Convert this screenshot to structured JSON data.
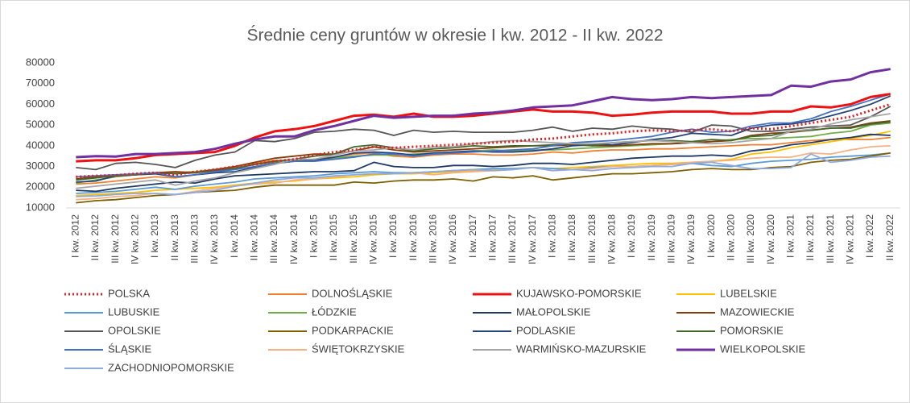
{
  "chart_data": {
    "type": "line",
    "title": "Średnie ceny gruntów w okresie I kw. 2012 - II kw. 2022",
    "categories": [
      "I kw. 2012",
      "II kw. 2012",
      "III kw. 2012",
      "IV kw. 2012",
      "I kw. 2013",
      "II kw. 2013",
      "III kw. 2013",
      "IV kw. 2013",
      "I kw. 2014",
      "II kw. 2014",
      "III kw. 2014",
      "IV kw. 2014",
      "I kw. 2015",
      "II kw. 2015",
      "III kw. 2015",
      "IV kw. 2015",
      "I kw. 2016",
      "II kw. 2016",
      "III kw. 2016",
      "IV kw. 2016",
      "I kw. 2017",
      "II kw. 2017",
      "III kw. 2017",
      "IV kw. 2017",
      "I kw. 2018",
      "II kw. 2018",
      "III kw. 2018",
      "IV kw. 2018",
      "I kw. 2019",
      "II kw. 2019",
      "III kw. 2019",
      "IV kw. 2019",
      "I kw. 2020",
      "II kw. 2020",
      "III kw. 2020",
      "IV kw. 2020",
      "I kw. 2021",
      "II kw. 2021",
      "III kw. 2021",
      "IV kw. 2021",
      "I kw. 2022",
      "II kw. 2022"
    ],
    "ylim": [
      10000,
      80000
    ],
    "yticks": [
      10000,
      20000,
      30000,
      40000,
      50000,
      60000,
      70000,
      80000
    ],
    "grid": false,
    "legend": "bottom",
    "series": [
      {
        "name": "POLSKA",
        "color": "#e02020",
        "style": "dotted",
        "line_width": 3,
        "values": [
          25000,
          25500,
          25800,
          26500,
          27000,
          26000,
          27500,
          28500,
          30000,
          31000,
          32500,
          33500,
          35500,
          37000,
          38000,
          39500,
          39000,
          39500,
          40000,
          40500,
          41000,
          41500,
          42000,
          43000,
          43500,
          44500,
          45500,
          46000,
          47000,
          47500,
          47000,
          47500,
          48000,
          47000,
          48500,
          48000,
          49500,
          51000,
          52500,
          54000,
          57000,
          60000
        ]
      },
      {
        "name": "DOLNOŚLĄSKIE",
        "color": "#f08030",
        "values": [
          21500,
          22000,
          23000,
          24000,
          25000,
          24500,
          26000,
          27000,
          29000,
          31500,
          33000,
          32500,
          33500,
          34500,
          36000,
          36500,
          35000,
          34500,
          35500,
          36000,
          36000,
          35500,
          35500,
          36000,
          37000,
          36500,
          37500,
          38000,
          38000,
          38500,
          38500,
          39000,
          39500,
          40000,
          40500,
          40500,
          41500,
          42500,
          43000,
          43000,
          43000,
          44000
        ]
      },
      {
        "name": "KUJAWSKO-POMORSKIE",
        "color": "#ee1111",
        "line_width": 3,
        "values": [
          32500,
          33000,
          33000,
          34000,
          35500,
          36000,
          36500,
          37000,
          40000,
          44000,
          47000,
          48000,
          49500,
          52000,
          54500,
          55000,
          54000,
          55500,
          54000,
          54000,
          54500,
          55500,
          56500,
          57500,
          56500,
          56500,
          56000,
          54500,
          55000,
          56000,
          56500,
          56500,
          56500,
          55500,
          55500,
          56500,
          56500,
          59000,
          58500,
          60000,
          63500,
          65000
        ]
      },
      {
        "name": "LUBELSKIE",
        "color": "#ffc000",
        "values": [
          16000,
          16500,
          17000,
          17500,
          18500,
          19000,
          19500,
          20000,
          21000,
          22000,
          22500,
          23000,
          24000,
          24500,
          25000,
          26000,
          26500,
          26500,
          27000,
          27500,
          28000,
          28500,
          29000,
          29500,
          29000,
          29500,
          30000,
          30500,
          31000,
          31500,
          31500,
          32000,
          32500,
          33500,
          36000,
          37000,
          39000,
          40500,
          42000,
          43500,
          45000,
          47000
        ]
      },
      {
        "name": "LUBUSKIE",
        "color": "#5b9bd5",
        "values": [
          17000,
          17500,
          18000,
          19000,
          20000,
          19000,
          20500,
          21500,
          22500,
          24000,
          24500,
          25000,
          25500,
          26500,
          27000,
          27500,
          27000,
          27000,
          27500,
          28000,
          28500,
          29000,
          29000,
          29500,
          29000,
          28500,
          29500,
          30000,
          30000,
          30500,
          31000,
          31500,
          30500,
          30000,
          31500,
          32500,
          33000,
          33500,
          34500,
          35000,
          35500,
          36500
        ]
      },
      {
        "name": "ŁÓDZKIE",
        "color": "#70ad47",
        "values": [
          22000,
          23500,
          25000,
          26000,
          26500,
          27000,
          27500,
          28500,
          29500,
          31000,
          32000,
          33000,
          33500,
          34000,
          35000,
          35500,
          35500,
          36000,
          36500,
          37000,
          37500,
          38000,
          37500,
          38000,
          38000,
          38500,
          39000,
          39500,
          40000,
          40500,
          41000,
          41500,
          42000,
          43000,
          43500,
          43500,
          44000,
          44500,
          46000,
          47000,
          50000,
          51000
        ]
      },
      {
        "name": "MAŁOPOLSKIE",
        "color": "#1f3864",
        "values": [
          18500,
          18000,
          19500,
          20500,
          21500,
          22500,
          22000,
          24000,
          25500,
          26000,
          26500,
          27000,
          27500,
          27500,
          28000,
          32000,
          30000,
          29500,
          29500,
          30500,
          30500,
          30000,
          30500,
          31500,
          31500,
          31000,
          32000,
          33000,
          34000,
          34500,
          35000,
          35000,
          35500,
          35000,
          37500,
          38500,
          40500,
          41500,
          43000,
          44000,
          45500,
          45000
        ]
      },
      {
        "name": "MAZOWIECKIE",
        "color": "#843c0c",
        "values": [
          24000,
          25000,
          25500,
          26000,
          27000,
          27500,
          27000,
          28500,
          30000,
          32000,
          34000,
          35000,
          36000,
          36000,
          37500,
          39500,
          38000,
          37000,
          37500,
          38000,
          38500,
          39000,
          39500,
          40000,
          40000,
          40500,
          40000,
          40000,
          40500,
          41000,
          41000,
          41500,
          42000,
          42500,
          45000,
          46000,
          46500,
          47500,
          48500,
          49000,
          51000,
          52000
        ]
      },
      {
        "name": "OPOLSKIE",
        "color": "#555555",
        "values": [
          29500,
          28500,
          31500,
          32000,
          31000,
          29500,
          33000,
          35500,
          37000,
          42500,
          42000,
          43500,
          46500,
          47000,
          48000,
          47500,
          45000,
          47500,
          46500,
          47000,
          46500,
          46500,
          46500,
          47500,
          49000,
          47000,
          48500,
          48000,
          49500,
          48500,
          48000,
          46500,
          50000,
          49500,
          47000,
          47000,
          48000,
          49000,
          49500,
          50000,
          54000,
          59000
        ]
      },
      {
        "name": "PODKARPACKIE",
        "color": "#7f6000",
        "values": [
          12500,
          13500,
          14000,
          15000,
          16000,
          16500,
          17500,
          18000,
          18500,
          20000,
          21000,
          21000,
          21000,
          21000,
          22500,
          22000,
          23000,
          23500,
          23500,
          24000,
          23000,
          25000,
          24500,
          25500,
          23500,
          24500,
          25500,
          26500,
          26500,
          27000,
          27500,
          28500,
          29000,
          28500,
          28500,
          29500,
          30000,
          32000,
          33000,
          33500,
          35000,
          36500
        ]
      },
      {
        "name": "PODLASKIE",
        "color": "#264478",
        "values": [
          22500,
          23000,
          25500,
          26000,
          26500,
          25000,
          26000,
          27000,
          27500,
          29500,
          31500,
          32500,
          33000,
          34500,
          36500,
          37000,
          36500,
          35500,
          36500,
          37000,
          37500,
          37000,
          37000,
          37500,
          38500,
          40000,
          40500,
          40500,
          41500,
          43000,
          44000,
          46000,
          45500,
          45000,
          48500,
          50000,
          50500,
          52000,
          54500,
          57000,
          60000,
          64000
        ]
      },
      {
        "name": "POMORSKIE",
        "color": "#43682b",
        "values": [
          23500,
          24500,
          25500,
          26000,
          27000,
          26500,
          27000,
          28000,
          29000,
          31000,
          32500,
          33500,
          35000,
          36000,
          39500,
          40500,
          39000,
          37500,
          38500,
          39000,
          40000,
          39500,
          40000,
          40000,
          40500,
          41000,
          40000,
          41500,
          42000,
          42500,
          42500,
          42000,
          43000,
          42500,
          44500,
          45000,
          47000,
          47500,
          48500,
          48500,
          50500,
          51500
        ]
      },
      {
        "name": "ŚLĄSKIE",
        "color": "#4472c4",
        "values": [
          25000,
          25500,
          26000,
          26500,
          27000,
          25000,
          26000,
          27500,
          28500,
          30000,
          31500,
          32500,
          32500,
          33500,
          34500,
          36000,
          36000,
          35000,
          36000,
          36500,
          37000,
          37500,
          38000,
          38500,
          40000,
          41500,
          42000,
          42500,
          43500,
          44500,
          46500,
          48000,
          46500,
          47000,
          49500,
          51000,
          51000,
          53000,
          56500,
          59000,
          62000,
          65000
        ]
      },
      {
        "name": "ŚWIĘTOKRZYSKIE",
        "color": "#f4b183",
        "values": [
          14000,
          14500,
          15500,
          16000,
          17000,
          16500,
          18000,
          19500,
          20500,
          21500,
          22000,
          23500,
          24000,
          25000,
          26000,
          26500,
          26500,
          27000,
          26000,
          27000,
          27500,
          28000,
          28500,
          29500,
          28000,
          28500,
          29000,
          30000,
          30000,
          30500,
          31000,
          32000,
          32500,
          33000,
          34000,
          34500,
          34500,
          36500,
          36000,
          38000,
          39500,
          40000
        ]
      },
      {
        "name": "WARMIŃSKO-MAZURSKIE",
        "color": "#a5a5a5",
        "values": [
          19500,
          20500,
          21500,
          22500,
          23500,
          21000,
          23000,
          24500,
          27000,
          29000,
          31000,
          33500,
          33500,
          35500,
          37500,
          38000,
          39000,
          38000,
          39500,
          39500,
          41000,
          42000,
          42500,
          42000,
          41500,
          41000,
          41000,
          41500,
          42000,
          42500,
          42000,
          41500,
          41000,
          41500,
          42500,
          43500,
          47000,
          48000,
          50500,
          52500,
          54000,
          55500
        ]
      },
      {
        "name": "WIELKOPOLSKIE",
        "color": "#7030a0",
        "line_width": 3,
        "values": [
          34500,
          35000,
          34800,
          36000,
          36000,
          36500,
          37000,
          38500,
          41000,
          43000,
          44500,
          44500,
          47500,
          49500,
          52000,
          54500,
          53500,
          54000,
          54500,
          54500,
          55500,
          56000,
          57000,
          58500,
          59000,
          59500,
          61500,
          63500,
          62500,
          62000,
          62500,
          63500,
          63000,
          63500,
          64000,
          64500,
          69000,
          68500,
          71000,
          72000,
          75500,
          77000
        ]
      },
      {
        "name": "ZACHODNIOPOMORSKIE",
        "color": "#8faadc",
        "values": [
          15500,
          15800,
          16500,
          17000,
          17000,
          16500,
          17500,
          18500,
          20500,
          22000,
          23500,
          24500,
          24500,
          25500,
          26000,
          26500,
          26500,
          27000,
          27500,
          28000,
          28500,
          28000,
          28500,
          29500,
          28000,
          28500,
          28000,
          29000,
          29500,
          30000,
          30000,
          31500,
          32000,
          30500,
          29000,
          29000,
          29500,
          36000,
          32000,
          33000,
          34500,
          35000
        ]
      }
    ]
  }
}
